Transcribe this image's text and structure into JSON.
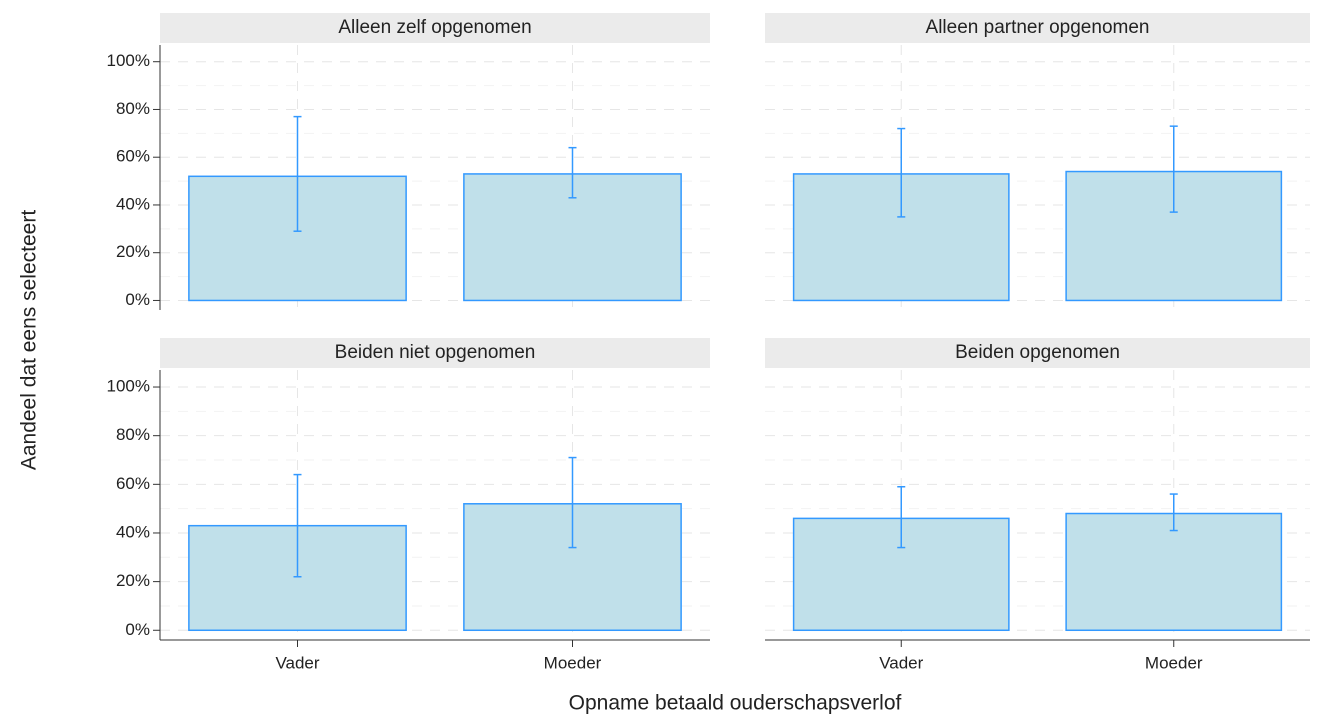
{
  "chart_data": {
    "type": "bar",
    "xlabel": "Opname betaald ouderschapsverlof",
    "ylabel": "Aandeel dat eens selecteert",
    "categories": [
      "Vader",
      "Moeder"
    ],
    "ylim": [
      -4,
      107
    ],
    "yticks": [
      {
        "value": 0,
        "label": "0%"
      },
      {
        "value": 20,
        "label": "20%"
      },
      {
        "value": 40,
        "label": "40%"
      },
      {
        "value": 60,
        "label": "60%"
      },
      {
        "value": 80,
        "label": "80%"
      },
      {
        "value": 100,
        "label": "100%"
      }
    ],
    "grid": true,
    "color": "#c0e0ea",
    "edge_color": "#3399ff",
    "facets": [
      {
        "title": "Alleen zelf opgenomen",
        "values": [
          52,
          53
        ],
        "lower": [
          29,
          43
        ],
        "upper": [
          77,
          64
        ]
      },
      {
        "title": "Alleen partner opgenomen",
        "values": [
          53,
          54
        ],
        "lower": [
          35,
          37
        ],
        "upper": [
          72,
          73
        ]
      },
      {
        "title": "Beiden niet opgenomen",
        "values": [
          43,
          52
        ],
        "lower": [
          22,
          34
        ],
        "upper": [
          64,
          71
        ]
      },
      {
        "title": "Beiden opgenomen",
        "values": [
          46,
          48
        ],
        "lower": [
          34,
          41
        ],
        "upper": [
          59,
          56
        ]
      }
    ]
  }
}
